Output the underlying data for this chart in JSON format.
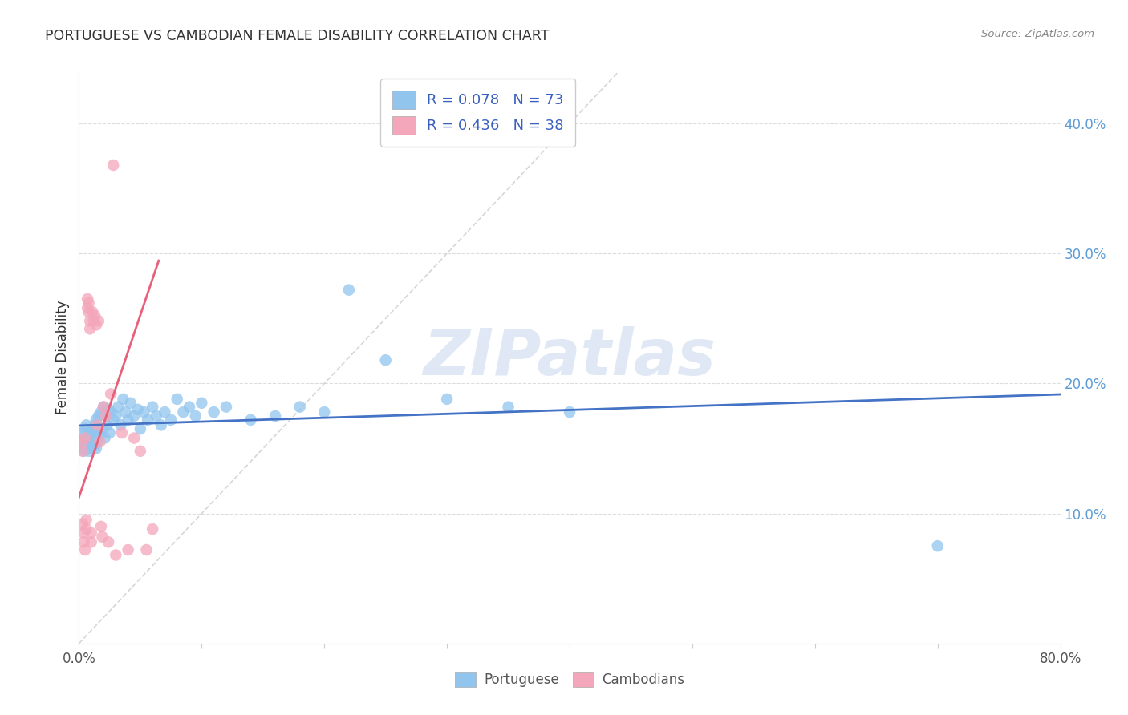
{
  "title": "PORTUGUESE VS CAMBODIAN FEMALE DISABILITY CORRELATION CHART",
  "source": "Source: ZipAtlas.com",
  "ylabel": "Female Disability",
  "xlim": [
    0.0,
    0.8
  ],
  "ylim": [
    0.0,
    0.44
  ],
  "portuguese_R": 0.078,
  "portuguese_N": 73,
  "cambodian_R": 0.436,
  "cambodian_N": 38,
  "portuguese_color": "#92C5EE",
  "cambodian_color": "#F4A6BA",
  "trend_portuguese_color": "#4472C4",
  "trend_cambodian_color": "#E8607A",
  "diagonal_color": "#CCCCCC",
  "watermark_color": "#B8CEE8",
  "portuguese_x": [
    0.002,
    0.003,
    0.003,
    0.004,
    0.004,
    0.005,
    0.005,
    0.006,
    0.006,
    0.007,
    0.007,
    0.008,
    0.008,
    0.009,
    0.009,
    0.01,
    0.01,
    0.011,
    0.011,
    0.012,
    0.012,
    0.013,
    0.013,
    0.014,
    0.014,
    0.015,
    0.015,
    0.016,
    0.017,
    0.018,
    0.019,
    0.02,
    0.021,
    0.022,
    0.023,
    0.024,
    0.025,
    0.026,
    0.028,
    0.03,
    0.032,
    0.034,
    0.036,
    0.038,
    0.04,
    0.042,
    0.045,
    0.048,
    0.05,
    0.053,
    0.056,
    0.06,
    0.063,
    0.067,
    0.07,
    0.075,
    0.08,
    0.085,
    0.09,
    0.095,
    0.1,
    0.11,
    0.12,
    0.14,
    0.16,
    0.18,
    0.2,
    0.22,
    0.25,
    0.3,
    0.35,
    0.4,
    0.7
  ],
  "portuguese_y": [
    0.155,
    0.15,
    0.162,
    0.148,
    0.158,
    0.152,
    0.165,
    0.155,
    0.168,
    0.15,
    0.16,
    0.155,
    0.148,
    0.162,
    0.158,
    0.15,
    0.155,
    0.165,
    0.158,
    0.152,
    0.16,
    0.155,
    0.168,
    0.15,
    0.172,
    0.165,
    0.155,
    0.175,
    0.16,
    0.178,
    0.165,
    0.182,
    0.158,
    0.175,
    0.168,
    0.18,
    0.162,
    0.178,
    0.172,
    0.175,
    0.182,
    0.168,
    0.188,
    0.178,
    0.172,
    0.185,
    0.175,
    0.18,
    0.165,
    0.178,
    0.172,
    0.182,
    0.175,
    0.168,
    0.178,
    0.172,
    0.188,
    0.178,
    0.182,
    0.175,
    0.185,
    0.178,
    0.182,
    0.172,
    0.175,
    0.182,
    0.178,
    0.272,
    0.218,
    0.188,
    0.182,
    0.178,
    0.075
  ],
  "cambodian_x": [
    0.002,
    0.003,
    0.003,
    0.004,
    0.004,
    0.005,
    0.005,
    0.006,
    0.006,
    0.007,
    0.007,
    0.008,
    0.008,
    0.009,
    0.009,
    0.01,
    0.01,
    0.011,
    0.012,
    0.013,
    0.014,
    0.015,
    0.016,
    0.017,
    0.018,
    0.019,
    0.02,
    0.022,
    0.024,
    0.026,
    0.028,
    0.03,
    0.035,
    0.04,
    0.045,
    0.05,
    0.055,
    0.06
  ],
  "cambodian_y": [
    0.155,
    0.148,
    0.092,
    0.085,
    0.078,
    0.158,
    0.072,
    0.088,
    0.095,
    0.265,
    0.258,
    0.262,
    0.255,
    0.248,
    0.242,
    0.085,
    0.078,
    0.255,
    0.248,
    0.252,
    0.245,
    0.168,
    0.248,
    0.155,
    0.09,
    0.082,
    0.182,
    0.175,
    0.078,
    0.192,
    0.368,
    0.068,
    0.162,
    0.072,
    0.158,
    0.148,
    0.072,
    0.088
  ]
}
